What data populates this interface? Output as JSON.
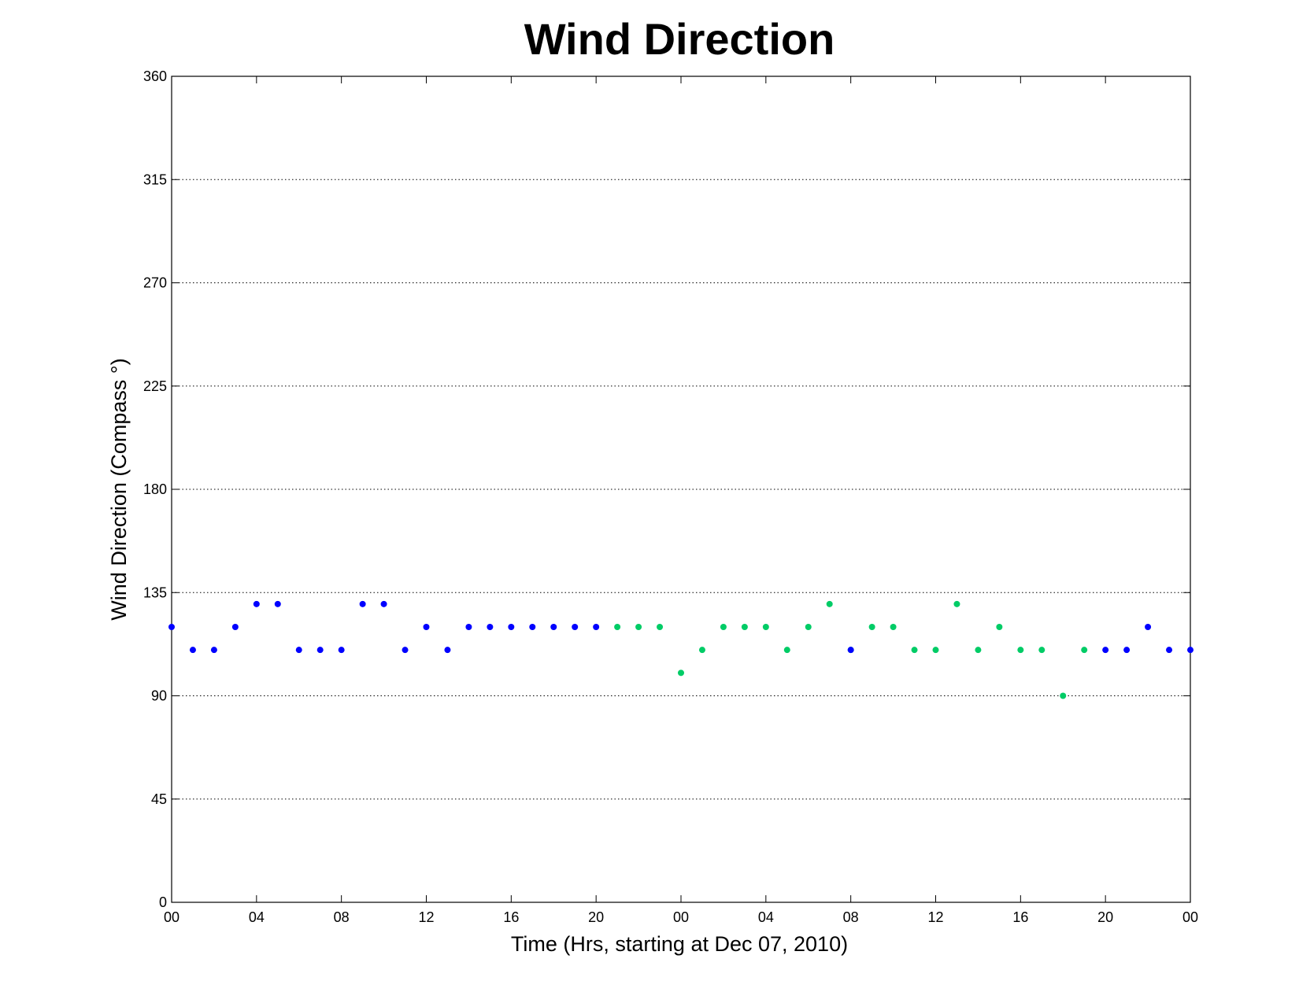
{
  "chart_data": {
    "type": "scatter",
    "title": "Wind Direction",
    "xlabel": "Time (Hrs, starting at Dec 07, 2010)",
    "ylabel": "Wind Direction (Compass  °)",
    "xlim": [
      0,
      48
    ],
    "ylim": [
      0,
      360
    ],
    "x_ticks": [
      0,
      4,
      8,
      12,
      16,
      20,
      24,
      28,
      32,
      36,
      40,
      44,
      48
    ],
    "x_tick_labels": [
      "00",
      "04",
      "08",
      "12",
      "16",
      "20",
      "00",
      "04",
      "08",
      "12",
      "16",
      "20",
      "00"
    ],
    "y_ticks": [
      0,
      45,
      90,
      135,
      180,
      225,
      270,
      315,
      360
    ],
    "y_tick_labels": [
      "0",
      "45",
      "90",
      "135",
      "180",
      "225",
      "270",
      "315",
      "360"
    ],
    "grid": "y",
    "colors": {
      "blue": "#0000ff",
      "green": "#00cc66"
    },
    "points": [
      {
        "x": 0,
        "y": 120,
        "c": "blue"
      },
      {
        "x": 1,
        "y": 110,
        "c": "blue"
      },
      {
        "x": 2,
        "y": 110,
        "c": "blue"
      },
      {
        "x": 3,
        "y": 120,
        "c": "blue"
      },
      {
        "x": 4,
        "y": 130,
        "c": "blue"
      },
      {
        "x": 5,
        "y": 130,
        "c": "blue"
      },
      {
        "x": 6,
        "y": 110,
        "c": "blue"
      },
      {
        "x": 7,
        "y": 110,
        "c": "blue"
      },
      {
        "x": 8,
        "y": 110,
        "c": "blue"
      },
      {
        "x": 9,
        "y": 130,
        "c": "blue"
      },
      {
        "x": 10,
        "y": 130,
        "c": "blue"
      },
      {
        "x": 11,
        "y": 110,
        "c": "blue"
      },
      {
        "x": 12,
        "y": 120,
        "c": "blue"
      },
      {
        "x": 13,
        "y": 110,
        "c": "blue"
      },
      {
        "x": 14,
        "y": 120,
        "c": "blue"
      },
      {
        "x": 15,
        "y": 120,
        "c": "blue"
      },
      {
        "x": 16,
        "y": 120,
        "c": "blue"
      },
      {
        "x": 17,
        "y": 120,
        "c": "blue"
      },
      {
        "x": 18,
        "y": 120,
        "c": "blue"
      },
      {
        "x": 19,
        "y": 120,
        "c": "blue"
      },
      {
        "x": 20,
        "y": 120,
        "c": "blue"
      },
      {
        "x": 21,
        "y": 120,
        "c": "green"
      },
      {
        "x": 22,
        "y": 120,
        "c": "green"
      },
      {
        "x": 23,
        "y": 120,
        "c": "green"
      },
      {
        "x": 24,
        "y": 100,
        "c": "green"
      },
      {
        "x": 25,
        "y": 110,
        "c": "green"
      },
      {
        "x": 26,
        "y": 120,
        "c": "green"
      },
      {
        "x": 27,
        "y": 120,
        "c": "green"
      },
      {
        "x": 28,
        "y": 120,
        "c": "green"
      },
      {
        "x": 29,
        "y": 110,
        "c": "green"
      },
      {
        "x": 30,
        "y": 120,
        "c": "green"
      },
      {
        "x": 31,
        "y": 130,
        "c": "green"
      },
      {
        "x": 32,
        "y": 110,
        "c": "green"
      },
      {
        "x": 32,
        "y": 110,
        "c": "blue"
      },
      {
        "x": 33,
        "y": 120,
        "c": "green"
      },
      {
        "x": 34,
        "y": 120,
        "c": "green"
      },
      {
        "x": 35,
        "y": 110,
        "c": "green"
      },
      {
        "x": 36,
        "y": 110,
        "c": "green"
      },
      {
        "x": 37,
        "y": 130,
        "c": "green"
      },
      {
        "x": 38,
        "y": 110,
        "c": "green"
      },
      {
        "x": 39,
        "y": 120,
        "c": "green"
      },
      {
        "x": 40,
        "y": 110,
        "c": "green"
      },
      {
        "x": 41,
        "y": 110,
        "c": "green"
      },
      {
        "x": 42,
        "y": 90,
        "c": "green"
      },
      {
        "x": 43,
        "y": 110,
        "c": "green"
      },
      {
        "x": 44,
        "y": 110,
        "c": "blue"
      },
      {
        "x": 45,
        "y": 110,
        "c": "blue"
      },
      {
        "x": 46,
        "y": 120,
        "c": "blue"
      },
      {
        "x": 47,
        "y": 110,
        "c": "blue"
      },
      {
        "x": 48,
        "y": 110,
        "c": "blue"
      }
    ]
  }
}
